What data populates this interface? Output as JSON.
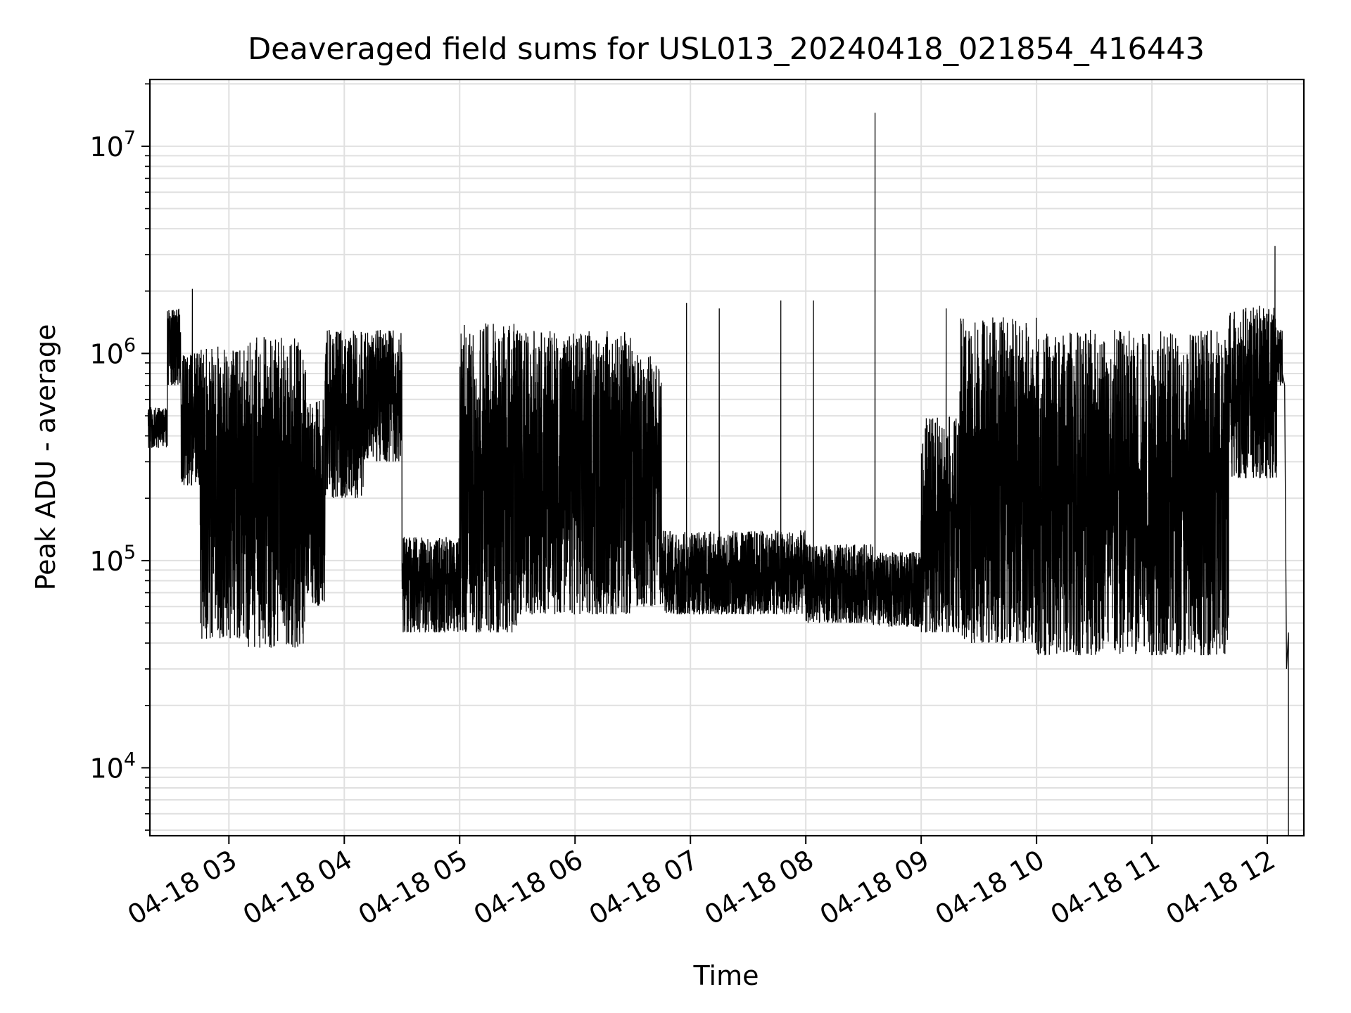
{
  "chart_data": {
    "type": "line",
    "title": "Deaveraged field sums for USL013_20240418_021854_416443",
    "xlabel": "Time",
    "ylabel": "Peak ADU - average",
    "y_scale": "log",
    "ylim": [
      4700,
      21000000
    ],
    "xlim": [
      "2024-04-18 02:18:54",
      "2024-04-18 12:19:00"
    ],
    "grid": true,
    "line_color": "#000000",
    "grid_color": "#e0e0e0",
    "x_ticks": [
      {
        "value": "2024-04-18 03:00",
        "label": "04-18 03"
      },
      {
        "value": "2024-04-18 04:00",
        "label": "04-18 04"
      },
      {
        "value": "2024-04-18 05:00",
        "label": "04-18 05"
      },
      {
        "value": "2024-04-18 06:00",
        "label": "04-18 06"
      },
      {
        "value": "2024-04-18 07:00",
        "label": "04-18 07"
      },
      {
        "value": "2024-04-18 08:00",
        "label": "04-18 08"
      },
      {
        "value": "2024-04-18 09:00",
        "label": "04-18 09"
      },
      {
        "value": "2024-04-18 10:00",
        "label": "04-18 10"
      },
      {
        "value": "2024-04-18 11:00",
        "label": "04-18 11"
      },
      {
        "value": "2024-04-18 12:00",
        "label": "04-18 12"
      }
    ],
    "y_ticks": [
      {
        "value": 10000,
        "base": "10",
        "exp": "4"
      },
      {
        "value": 100000,
        "base": "10",
        "exp": "5"
      },
      {
        "value": 1000000,
        "base": "10",
        "exp": "6"
      },
      {
        "value": 10000000,
        "base": "10",
        "exp": "7"
      }
    ],
    "segments": [
      {
        "start": "2024-04-18 02:18",
        "end": "2024-04-18 02:28",
        "low": 350000,
        "high": 550000
      },
      {
        "start": "2024-04-18 02:28",
        "end": "2024-04-18 02:35",
        "low": 700000,
        "high": 1650000
      },
      {
        "start": "2024-04-18 02:35",
        "end": "2024-04-18 02:45",
        "low": 230000,
        "high": 1000000
      },
      {
        "start": "2024-04-18 02:45",
        "end": "2024-04-18 03:10",
        "low": 42000,
        "high": 1100000
      },
      {
        "start": "2024-04-18 03:10",
        "end": "2024-04-18 03:40",
        "low": 38000,
        "high": 1200000
      },
      {
        "start": "2024-04-18 03:40",
        "end": "2024-04-18 03:50",
        "low": 60000,
        "high": 600000
      },
      {
        "start": "2024-04-18 03:50",
        "end": "2024-04-18 04:10",
        "low": 200000,
        "high": 1300000
      },
      {
        "start": "2024-04-18 04:10",
        "end": "2024-04-18 04:30",
        "low": 300000,
        "high": 1300000
      },
      {
        "start": "2024-04-18 04:30",
        "end": "2024-04-18 05:00",
        "low": 45000,
        "high": 130000
      },
      {
        "start": "2024-04-18 05:00",
        "end": "2024-04-18 05:30",
        "low": 45000,
        "high": 1400000
      },
      {
        "start": "2024-04-18 05:30",
        "end": "2024-04-18 06:30",
        "low": 55000,
        "high": 1300000
      },
      {
        "start": "2024-04-18 06:30",
        "end": "2024-04-18 06:45",
        "low": 60000,
        "high": 1000000
      },
      {
        "start": "2024-04-18 06:45",
        "end": "2024-04-18 08:00",
        "low": 55000,
        "high": 140000
      },
      {
        "start": "2024-04-18 08:00",
        "end": "2024-04-18 08:35",
        "low": 50000,
        "high": 120000
      },
      {
        "start": "2024-04-18 08:35",
        "end": "2024-04-18 09:00",
        "low": 48000,
        "high": 110000
      },
      {
        "start": "2024-04-18 09:00",
        "end": "2024-04-18 09:20",
        "low": 45000,
        "high": 500000
      },
      {
        "start": "2024-04-18 09:20",
        "end": "2024-04-18 10:00",
        "low": 40000,
        "high": 1500000
      },
      {
        "start": "2024-04-18 10:00",
        "end": "2024-04-18 11:40",
        "low": 35000,
        "high": 1300000
      },
      {
        "start": "2024-04-18 11:40",
        "end": "2024-04-18 12:05",
        "low": 250000,
        "high": 1700000
      },
      {
        "start": "2024-04-18 12:05",
        "end": "2024-04-18 12:08",
        "low": 700000,
        "high": 1300000
      }
    ],
    "spikes": [
      {
        "x": "2024-04-18 02:41",
        "y": 2050000
      },
      {
        "x": "2024-04-18 06:58",
        "y": 1750000
      },
      {
        "x": "2024-04-18 07:15",
        "y": 1650000
      },
      {
        "x": "2024-04-18 07:47",
        "y": 1800000
      },
      {
        "x": "2024-04-18 08:04",
        "y": 1800000
      },
      {
        "x": "2024-04-18 08:36",
        "y": 14500000
      },
      {
        "x": "2024-04-18 09:13",
        "y": 1650000
      },
      {
        "x": "2024-04-18 12:04",
        "y": 3300000
      },
      {
        "x": "2024-04-18 12:11",
        "y": 45000
      }
    ],
    "tail": [
      {
        "x": "2024-04-18 12:07",
        "y": 1300000
      },
      {
        "x": "2024-04-18 12:09",
        "y": 700000
      },
      {
        "x": "2024-04-18 12:10",
        "y": 30000
      },
      {
        "x": "2024-04-18 12:11",
        "y": 4700
      }
    ]
  }
}
